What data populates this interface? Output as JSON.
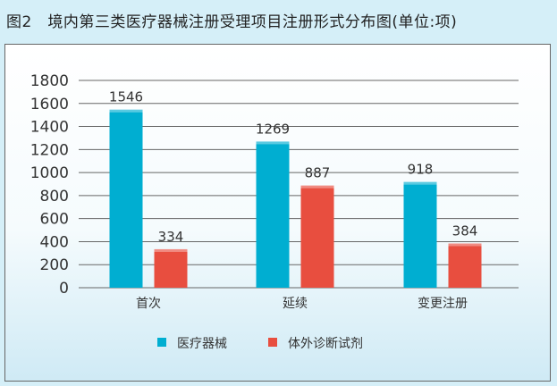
{
  "chart_data": {
    "type": "bar",
    "title": "图2　境内第三类医疗器械注册受理项目注册形式分布图(单位:项)",
    "categories": [
      "首次",
      "延续",
      "变更注册"
    ],
    "series": [
      {
        "name": "医疗器械",
        "values": [
          1546,
          1269,
          918
        ],
        "color": "#00aed1"
      },
      {
        "name": "体外诊断试剂",
        "values": [
          334,
          887,
          384
        ],
        "color": "#e84e3f"
      }
    ],
    "ylim": [
      0,
      1800
    ],
    "yticks": [
      0,
      200,
      400,
      600,
      800,
      1000,
      1200,
      1400,
      1600,
      1800
    ],
    "grid": true,
    "legend": "bottom"
  }
}
